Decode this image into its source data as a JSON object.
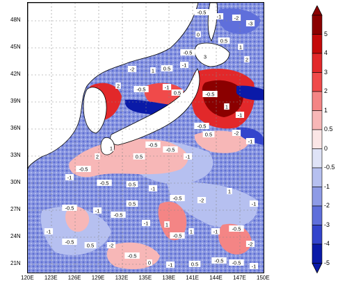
{
  "map": {
    "lat_labels": [
      "48N",
      "45N",
      "42N",
      "39N",
      "36N",
      "33N",
      "30N",
      "27N",
      "24N",
      "21N"
    ],
    "lon_labels": [
      "120E",
      "123E",
      "126E",
      "129E",
      "132E",
      "135E",
      "138E",
      "141E",
      "144E",
      "147E",
      "150E"
    ],
    "contour_labels": [
      "-0.5",
      "-1",
      "-2",
      "-3",
      "0",
      "0.5",
      "1",
      "2",
      "3",
      "-0.5",
      "-1",
      "0.5",
      "1",
      "-2",
      "2",
      "-0.5",
      "-1",
      "0.5",
      "-0.5",
      "1",
      "-1",
      "-0.5",
      "0.5",
      "-2",
      "-1",
      "-0.5",
      "-0.5",
      "-1",
      "0.5",
      "1",
      "2",
      "-0.5",
      "-1",
      "-0.5",
      "0.5",
      "-1",
      "-0.5",
      "-2",
      "1",
      "-1",
      "-0.5",
      "-1",
      "-0.5",
      "0.5",
      "-1",
      "1",
      "-0.5",
      "1",
      "-1",
      "-0.5",
      "-2",
      "-1",
      "-0.5",
      "0.5",
      "-2",
      "-0.5",
      "0",
      "-1",
      "0.5",
      "-0.5",
      "-0.5",
      "-1"
    ]
  },
  "colorbar": {
    "labels": [
      "5",
      "4",
      "3",
      "2",
      "1",
      "0.5",
      "0",
      "-0.5",
      "-1",
      "-2",
      "-3",
      "-4",
      "-5"
    ],
    "colors": [
      "#8b0000",
      "#c40a0a",
      "#e2282a",
      "#f04a4a",
      "#f48585",
      "#f7b7b7",
      "#fbe6e6",
      "#dfe3f7",
      "#b6c0f0",
      "#8e9be6",
      "#5f6fdb",
      "#3344cc",
      "#0a1aa8"
    ]
  }
}
